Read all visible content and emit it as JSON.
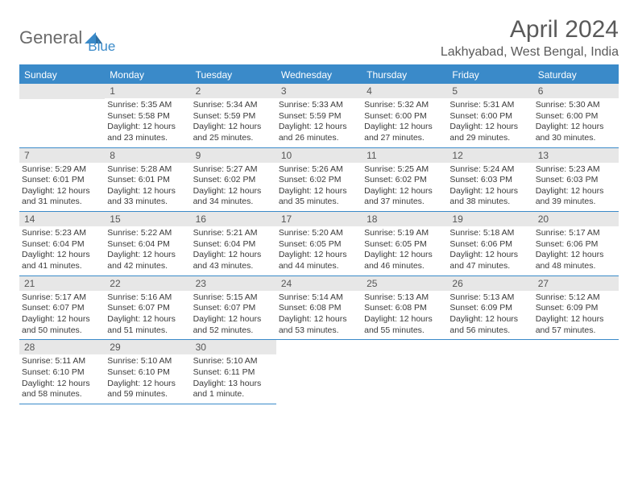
{
  "logo": {
    "part1": "General",
    "part2": "Blue"
  },
  "title": "April 2024",
  "location": "Lakhyabad, West Bengal, India",
  "colors": {
    "accent": "#3a8ac9",
    "dayHeaderBg": "#e7e7e7",
    "textGray": "#6a6a6a",
    "bodyText": "#3a3a3a"
  },
  "daysOfWeek": [
    "Sunday",
    "Monday",
    "Tuesday",
    "Wednesday",
    "Thursday",
    "Friday",
    "Saturday"
  ],
  "weeks": [
    [
      {
        "n": "",
        "sunrise": "",
        "sunset": "",
        "daylight": ""
      },
      {
        "n": "1",
        "sunrise": "5:35 AM",
        "sunset": "5:58 PM",
        "daylight": "12 hours and 23 minutes."
      },
      {
        "n": "2",
        "sunrise": "5:34 AM",
        "sunset": "5:59 PM",
        "daylight": "12 hours and 25 minutes."
      },
      {
        "n": "3",
        "sunrise": "5:33 AM",
        "sunset": "5:59 PM",
        "daylight": "12 hours and 26 minutes."
      },
      {
        "n": "4",
        "sunrise": "5:32 AM",
        "sunset": "6:00 PM",
        "daylight": "12 hours and 27 minutes."
      },
      {
        "n": "5",
        "sunrise": "5:31 AM",
        "sunset": "6:00 PM",
        "daylight": "12 hours and 29 minutes."
      },
      {
        "n": "6",
        "sunrise": "5:30 AM",
        "sunset": "6:00 PM",
        "daylight": "12 hours and 30 minutes."
      }
    ],
    [
      {
        "n": "7",
        "sunrise": "5:29 AM",
        "sunset": "6:01 PM",
        "daylight": "12 hours and 31 minutes."
      },
      {
        "n": "8",
        "sunrise": "5:28 AM",
        "sunset": "6:01 PM",
        "daylight": "12 hours and 33 minutes."
      },
      {
        "n": "9",
        "sunrise": "5:27 AM",
        "sunset": "6:02 PM",
        "daylight": "12 hours and 34 minutes."
      },
      {
        "n": "10",
        "sunrise": "5:26 AM",
        "sunset": "6:02 PM",
        "daylight": "12 hours and 35 minutes."
      },
      {
        "n": "11",
        "sunrise": "5:25 AM",
        "sunset": "6:02 PM",
        "daylight": "12 hours and 37 minutes."
      },
      {
        "n": "12",
        "sunrise": "5:24 AM",
        "sunset": "6:03 PM",
        "daylight": "12 hours and 38 minutes."
      },
      {
        "n": "13",
        "sunrise": "5:23 AM",
        "sunset": "6:03 PM",
        "daylight": "12 hours and 39 minutes."
      }
    ],
    [
      {
        "n": "14",
        "sunrise": "5:23 AM",
        "sunset": "6:04 PM",
        "daylight": "12 hours and 41 minutes."
      },
      {
        "n": "15",
        "sunrise": "5:22 AM",
        "sunset": "6:04 PM",
        "daylight": "12 hours and 42 minutes."
      },
      {
        "n": "16",
        "sunrise": "5:21 AM",
        "sunset": "6:04 PM",
        "daylight": "12 hours and 43 minutes."
      },
      {
        "n": "17",
        "sunrise": "5:20 AM",
        "sunset": "6:05 PM",
        "daylight": "12 hours and 44 minutes."
      },
      {
        "n": "18",
        "sunrise": "5:19 AM",
        "sunset": "6:05 PM",
        "daylight": "12 hours and 46 minutes."
      },
      {
        "n": "19",
        "sunrise": "5:18 AM",
        "sunset": "6:06 PM",
        "daylight": "12 hours and 47 minutes."
      },
      {
        "n": "20",
        "sunrise": "5:17 AM",
        "sunset": "6:06 PM",
        "daylight": "12 hours and 48 minutes."
      }
    ],
    [
      {
        "n": "21",
        "sunrise": "5:17 AM",
        "sunset": "6:07 PM",
        "daylight": "12 hours and 50 minutes."
      },
      {
        "n": "22",
        "sunrise": "5:16 AM",
        "sunset": "6:07 PM",
        "daylight": "12 hours and 51 minutes."
      },
      {
        "n": "23",
        "sunrise": "5:15 AM",
        "sunset": "6:07 PM",
        "daylight": "12 hours and 52 minutes."
      },
      {
        "n": "24",
        "sunrise": "5:14 AM",
        "sunset": "6:08 PM",
        "daylight": "12 hours and 53 minutes."
      },
      {
        "n": "25",
        "sunrise": "5:13 AM",
        "sunset": "6:08 PM",
        "daylight": "12 hours and 55 minutes."
      },
      {
        "n": "26",
        "sunrise": "5:13 AM",
        "sunset": "6:09 PM",
        "daylight": "12 hours and 56 minutes."
      },
      {
        "n": "27",
        "sunrise": "5:12 AM",
        "sunset": "6:09 PM",
        "daylight": "12 hours and 57 minutes."
      }
    ],
    [
      {
        "n": "28",
        "sunrise": "5:11 AM",
        "sunset": "6:10 PM",
        "daylight": "12 hours and 58 minutes."
      },
      {
        "n": "29",
        "sunrise": "5:10 AM",
        "sunset": "6:10 PM",
        "daylight": "12 hours and 59 minutes."
      },
      {
        "n": "30",
        "sunrise": "5:10 AM",
        "sunset": "6:11 PM",
        "daylight": "13 hours and 1 minute."
      },
      {
        "n": "",
        "sunrise": "",
        "sunset": "",
        "daylight": ""
      },
      {
        "n": "",
        "sunrise": "",
        "sunset": "",
        "daylight": ""
      },
      {
        "n": "",
        "sunrise": "",
        "sunset": "",
        "daylight": ""
      },
      {
        "n": "",
        "sunrise": "",
        "sunset": "",
        "daylight": ""
      }
    ]
  ],
  "labels": {
    "sunrise": "Sunrise: ",
    "sunset": "Sunset: ",
    "daylight": "Daylight: "
  }
}
